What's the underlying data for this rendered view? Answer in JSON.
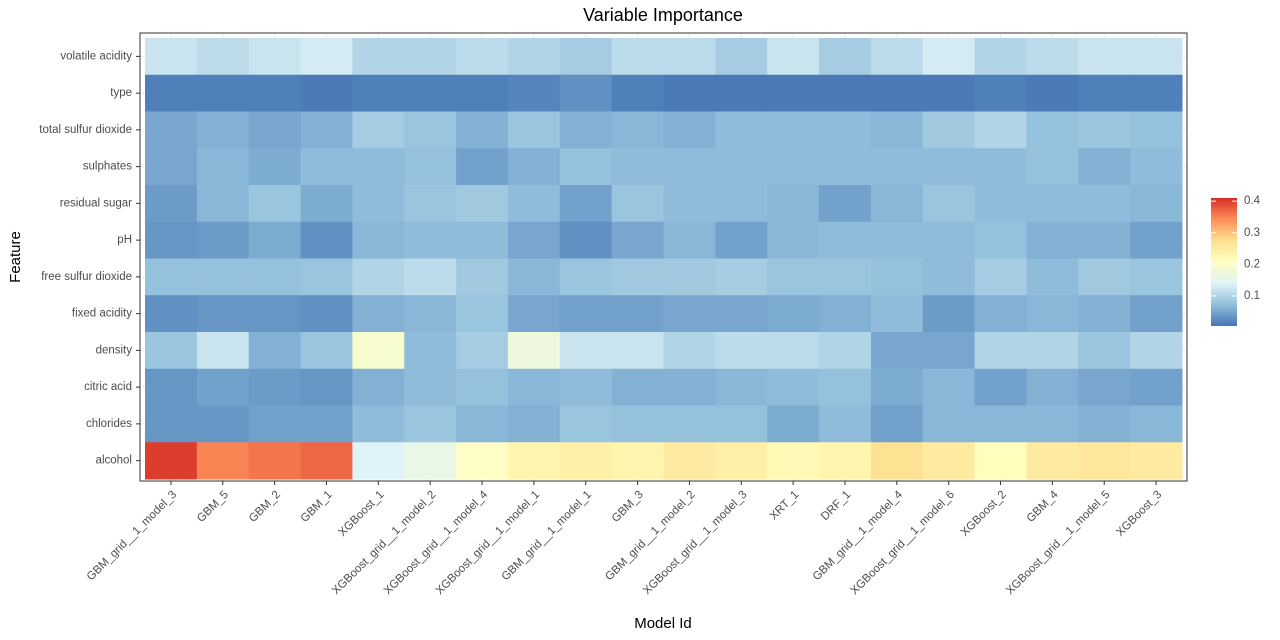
{
  "chart_data": {
    "type": "heatmap",
    "title": "Variable Importance",
    "x_label": "Model Id",
    "y_label": "Feature",
    "x": [
      "GBM_grid__1_model_3",
      "GBM_5",
      "GBM_2",
      "GBM_1",
      "XGBoost_1",
      "XGBoost_grid__1_model_2",
      "XGBoost_grid__1_model_4",
      "XGBoost_grid__1_model_1",
      "GBM_grid__1_model_1",
      "GBM_3",
      "GBM_grid__1_model_2",
      "XGBoost_grid__1_model_3",
      "XRT_1",
      "DRF_1",
      "GBM_grid__1_model_4",
      "XGBoost_grid__1_model_6",
      "XGBoost_2",
      "GBM_4",
      "XGBoost_grid__1_model_5",
      "XGBoost_3"
    ],
    "y": [
      "volatile acidity",
      "type",
      "total sulfur dioxide",
      "sulphates",
      "residual sugar",
      "pH",
      "free sulfur dioxide",
      "fixed acidity",
      "density",
      "citric acid",
      "chlorides",
      "alcohol"
    ],
    "values": [
      [
        0.12,
        0.11,
        0.12,
        0.13,
        0.1,
        0.1,
        0.11,
        0.1,
        0.09,
        0.11,
        0.11,
        0.09,
        0.12,
        0.09,
        0.11,
        0.13,
        0.1,
        0.11,
        0.12,
        0.12
      ],
      [
        0.015,
        0.015,
        0.015,
        0.01,
        0.015,
        0.015,
        0.015,
        0.02,
        0.03,
        0.015,
        0.01,
        0.01,
        0.01,
        0.01,
        0.01,
        0.01,
        0.015,
        0.01,
        0.015,
        0.015
      ],
      [
        0.05,
        0.06,
        0.05,
        0.06,
        0.09,
        0.08,
        0.06,
        0.08,
        0.06,
        0.065,
        0.06,
        0.07,
        0.07,
        0.07,
        0.065,
        0.085,
        0.1,
        0.075,
        0.08,
        0.075
      ],
      [
        0.05,
        0.065,
        0.055,
        0.07,
        0.07,
        0.075,
        0.045,
        0.06,
        0.075,
        0.07,
        0.07,
        0.07,
        0.07,
        0.07,
        0.07,
        0.07,
        0.07,
        0.075,
        0.06,
        0.07
      ],
      [
        0.04,
        0.065,
        0.08,
        0.055,
        0.07,
        0.08,
        0.085,
        0.07,
        0.045,
        0.08,
        0.07,
        0.07,
        0.065,
        0.045,
        0.065,
        0.08,
        0.07,
        0.07,
        0.07,
        0.065
      ],
      [
        0.035,
        0.04,
        0.055,
        0.03,
        0.065,
        0.07,
        0.07,
        0.05,
        0.03,
        0.05,
        0.065,
        0.045,
        0.065,
        0.07,
        0.07,
        0.07,
        0.075,
        0.06,
        0.06,
        0.045
      ],
      [
        0.075,
        0.075,
        0.075,
        0.08,
        0.1,
        0.11,
        0.085,
        0.065,
        0.08,
        0.085,
        0.085,
        0.09,
        0.08,
        0.08,
        0.075,
        0.07,
        0.09,
        0.07,
        0.085,
        0.08
      ],
      [
        0.03,
        0.035,
        0.035,
        0.03,
        0.06,
        0.065,
        0.08,
        0.05,
        0.045,
        0.045,
        0.05,
        0.05,
        0.055,
        0.06,
        0.07,
        0.04,
        0.06,
        0.065,
        0.06,
        0.045
      ],
      [
        0.08,
        0.12,
        0.06,
        0.08,
        0.19,
        0.07,
        0.09,
        0.17,
        0.12,
        0.12,
        0.1,
        0.11,
        0.11,
        0.1,
        0.05,
        0.05,
        0.1,
        0.1,
        0.08,
        0.1
      ],
      [
        0.035,
        0.045,
        0.04,
        0.035,
        0.06,
        0.07,
        0.075,
        0.065,
        0.07,
        0.06,
        0.06,
        0.065,
        0.07,
        0.075,
        0.055,
        0.065,
        0.045,
        0.06,
        0.05,
        0.045
      ],
      [
        0.035,
        0.035,
        0.045,
        0.045,
        0.07,
        0.08,
        0.065,
        0.06,
        0.08,
        0.075,
        0.075,
        0.075,
        0.055,
        0.07,
        0.045,
        0.065,
        0.065,
        0.065,
        0.06,
        0.065
      ],
      [
        0.4,
        0.35,
        0.36,
        0.37,
        0.14,
        0.16,
        0.2,
        0.23,
        0.24,
        0.23,
        0.25,
        0.24,
        0.22,
        0.23,
        0.27,
        0.25,
        0.21,
        0.25,
        0.26,
        0.25
      ]
    ],
    "colorbar": {
      "lim": [
        0.005,
        0.41
      ],
      "ticks": [
        0.1,
        0.2,
        0.3,
        0.4
      ],
      "colors": [
        "#4575b4",
        "#91bfdb",
        "#e0f3f8",
        "#ffffbf",
        "#fee090",
        "#fc8d59",
        "#d73027"
      ]
    },
    "grid": true
  }
}
